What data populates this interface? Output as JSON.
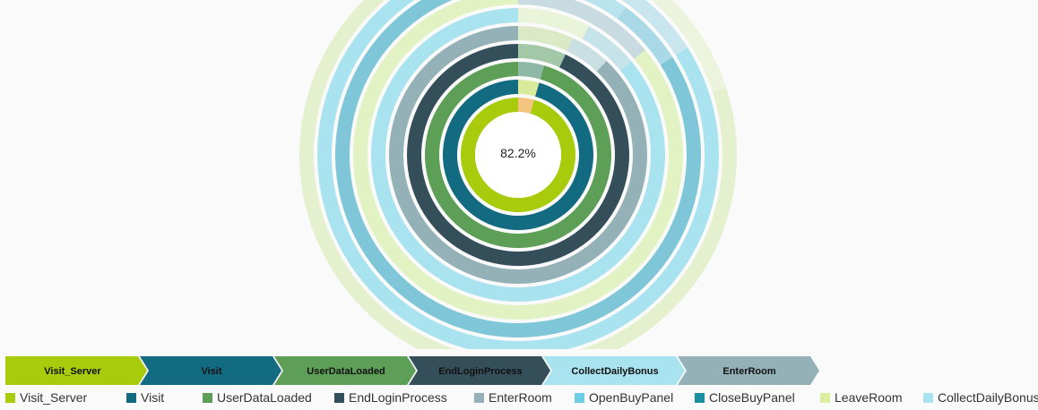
{
  "chart_data": {
    "type": "sunburst",
    "center_label": "82.2%",
    "rings": [
      {
        "name": "Visit_Server",
        "value": 0.955,
        "start": 0.045,
        "color": "#a8cc0c"
      },
      {
        "name": "Visit",
        "value": 0.955,
        "start": 0.045,
        "color": "#136b82"
      },
      {
        "name": "UserDataLoaded",
        "value": 0.955,
        "start": 0.045,
        "color": "#5e9f58"
      },
      {
        "name": "EndLoginProcess",
        "value": 0.93,
        "start": 0.07,
        "color": "#344f5a"
      },
      {
        "name": "EnterRoom",
        "value": 0.88,
        "start": 0.12,
        "color": "#93b1b6"
      },
      {
        "name": "CollectDailyBonus",
        "value": 0.86,
        "start": 0.14,
        "color": "#a9e3f0"
      },
      {
        "name": "LeaveRoom",
        "value": 0.86,
        "start": 0.14,
        "color": "#e2f2c3"
      },
      {
        "name": "OpenBuyPanel",
        "value": 0.84,
        "start": 0.16,
        "color": "#7fc6d8"
      },
      {
        "name": "CloseBuyPanel",
        "value": 0.84,
        "start": 0.16,
        "color": "#a9e3f0"
      },
      {
        "name": "LeaveRoom",
        "value": 0.8,
        "start": 0.2,
        "color": "#e5f0cf"
      }
    ],
    "minor_segments": [
      {
        "ring": 0,
        "value": 0.045,
        "color": "#f3c57f"
      },
      {
        "ring": 1,
        "value": 0.045,
        "color": "#d9ea9b"
      },
      {
        "ring": 2,
        "value": 0.045,
        "color": "#8fb8a6"
      },
      {
        "ring": 3,
        "value": 0.07,
        "color": "#a3c8a8"
      },
      {
        "ring": 4,
        "value": 0.05,
        "color": "#c9dfe1"
      },
      {
        "ring": 4,
        "value": 0.07,
        "color": "#dbe9c6"
      },
      {
        "ring": 5,
        "value": 0.06,
        "color": "#c6e3ea"
      },
      {
        "ring": 5,
        "value": 0.08,
        "color": "#eaf4d8"
      },
      {
        "ring": 6,
        "value": 0.14,
        "color": "#c8dbe0"
      },
      {
        "ring": 7,
        "value": 0.06,
        "color": "#a9d9e6"
      },
      {
        "ring": 7,
        "value": 0.06,
        "color": "#b8e4ee"
      },
      {
        "ring": 8,
        "value": 0.16,
        "color": "#c9e6ee"
      },
      {
        "ring": 9,
        "value": 0.2,
        "color": "#edf4dd"
      }
    ]
  },
  "breadcrumb": [
    {
      "label": "Visit_Server",
      "color": "#a8cc0c"
    },
    {
      "label": "Visit",
      "color": "#136b82"
    },
    {
      "label": "UserDataLoaded",
      "color": "#5e9f58"
    },
    {
      "label": "EndLoginProcess",
      "color": "#344f5a"
    },
    {
      "label": "CollectDailyBonus",
      "color": "#a9e3f0"
    },
    {
      "label": "EnterRoom",
      "color": "#93b1b6"
    }
  ],
  "legend": [
    {
      "label": "Visit_Server",
      "color": "#a8cc0c"
    },
    {
      "label": "Visit",
      "color": "#136b82"
    },
    {
      "label": "UserDataLoaded",
      "color": "#5e9f58"
    },
    {
      "label": "EndLoginProcess",
      "color": "#344f5a"
    },
    {
      "label": "EnterRoom",
      "color": "#93b1b6"
    },
    {
      "label": "OpenBuyPanel",
      "color": "#6ccde3"
    },
    {
      "label": "CloseBuyPanel",
      "color": "#1b8fa0"
    },
    {
      "label": "LeaveRoom",
      "color": "#dceea0"
    },
    {
      "label": "CollectDailyBonus",
      "color": "#a9e3f0"
    }
  ]
}
